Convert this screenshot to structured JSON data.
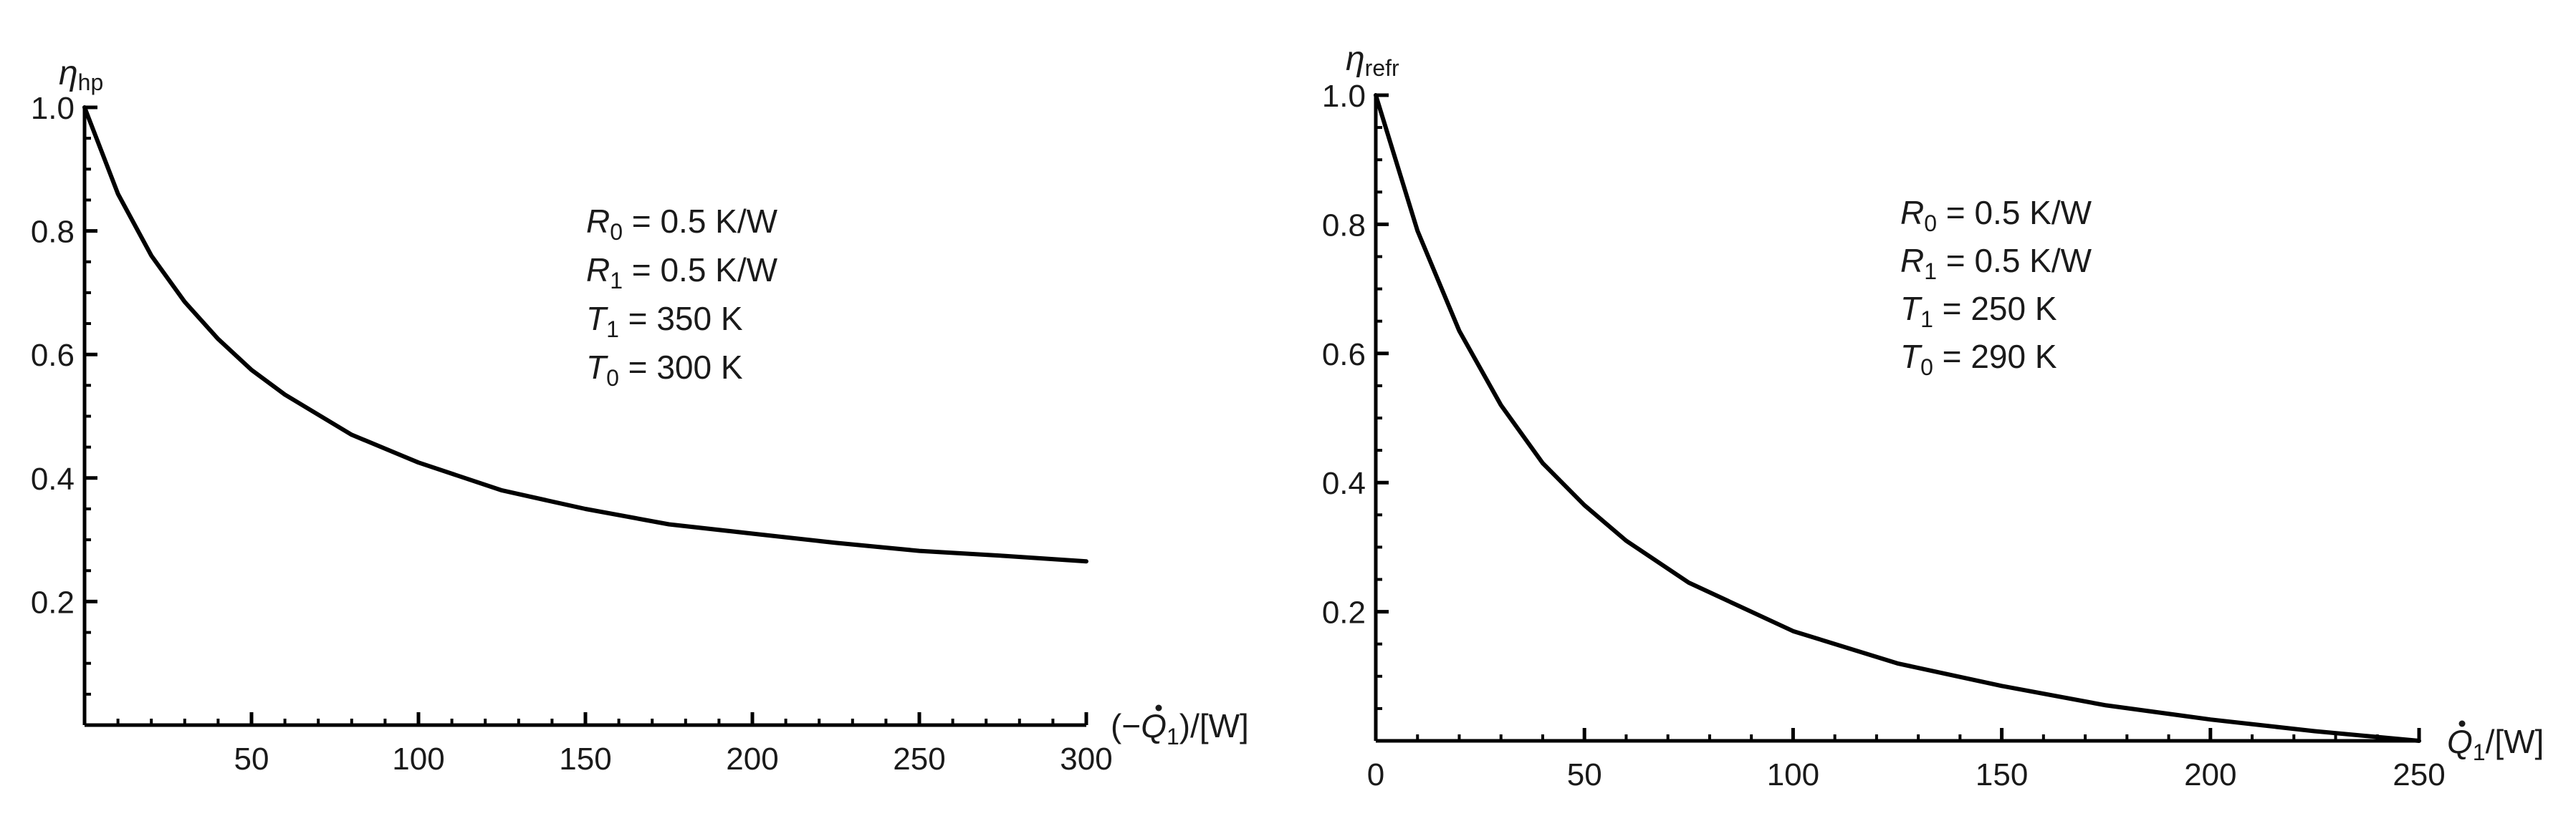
{
  "chart_data": [
    {
      "type": "line",
      "ylabel": {
        "symbol": "η",
        "sub": "hp"
      },
      "xlabel": {
        "prefix": "(−",
        "symbol": "Q",
        "sub": "1",
        "suffix": ")/[W]"
      },
      "xlim": [
        0,
        300
      ],
      "ylim": [
        0,
        1.0
      ],
      "x_ticks": [
        50,
        100,
        150,
        200,
        250,
        300
      ],
      "x_tick_labels": [
        "50",
        "100",
        "150",
        "200",
        "250",
        "300"
      ],
      "y_ticks": [
        0.2,
        0.4,
        0.6,
        0.8,
        1.0
      ],
      "y_tick_labels": [
        "0.2",
        "0.4",
        "0.6",
        "0.8",
        "1.0"
      ],
      "x_minor_step": 10,
      "y_minor_step": 0.05,
      "annotations": [
        {
          "var": "R",
          "sub": "0",
          "rest": " = 0.5 K/W"
        },
        {
          "var": "R",
          "sub": "1",
          "rest": " = 0.5 K/W"
        },
        {
          "var": "T",
          "sub": "1",
          "rest": " = 350 K"
        },
        {
          "var": "T",
          "sub": "0",
          "rest": " = 300 K"
        }
      ],
      "series": [
        {
          "name": "eta_hp",
          "x": [
            0,
            10,
            20,
            30,
            40,
            50,
            60,
            80,
            100,
            125,
            150,
            175,
            200,
            225,
            250,
            275,
            300
          ],
          "y": [
            1.0,
            0.86,
            0.76,
            0.685,
            0.625,
            0.575,
            0.535,
            0.47,
            0.425,
            0.38,
            0.35,
            0.325,
            0.31,
            0.295,
            0.282,
            0.274,
            0.265
          ]
        }
      ]
    },
    {
      "type": "line",
      "ylabel": {
        "symbol": "η",
        "sub": "refr"
      },
      "xlabel": {
        "prefix": "",
        "symbol": "Q",
        "sub": "1",
        "suffix": "/[W]"
      },
      "xlim": [
        0,
        250
      ],
      "ylim": [
        0,
        1.0
      ],
      "x_ticks": [
        0,
        50,
        100,
        150,
        200,
        250
      ],
      "x_tick_labels": [
        "0",
        "50",
        "100",
        "150",
        "200",
        "250"
      ],
      "y_ticks": [
        0.2,
        0.4,
        0.6,
        0.8,
        1.0
      ],
      "y_tick_labels": [
        "0.2",
        "0.4",
        "0.6",
        "0.8",
        "1.0"
      ],
      "x_minor_step": 10,
      "y_minor_step": 0.05,
      "annotations": [
        {
          "var": "R",
          "sub": "0",
          "rest": " = 0.5 K/W"
        },
        {
          "var": "R",
          "sub": "1",
          "rest": " = 0.5 K/W"
        },
        {
          "var": "T",
          "sub": "1",
          "rest": " = 250 K"
        },
        {
          "var": "T",
          "sub": "0",
          "rest": " = 290 K"
        }
      ],
      "series": [
        {
          "name": "eta_refr",
          "x": [
            0,
            10,
            20,
            30,
            40,
            50,
            60,
            75,
            100,
            125,
            150,
            175,
            200,
            225,
            250
          ],
          "y": [
            1.0,
            0.79,
            0.635,
            0.52,
            0.43,
            0.365,
            0.31,
            0.245,
            0.17,
            0.12,
            0.085,
            0.055,
            0.033,
            0.015,
            0.0
          ]
        }
      ]
    }
  ]
}
